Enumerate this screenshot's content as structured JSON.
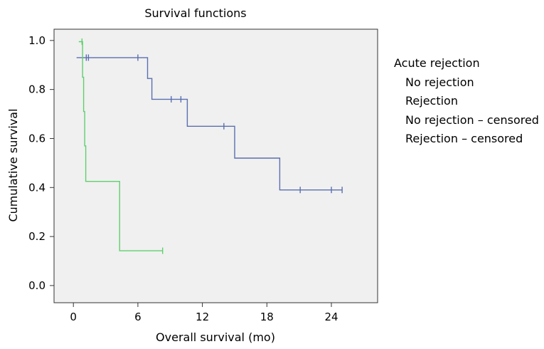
{
  "chart_data": {
    "type": "line",
    "title": "Survival functions",
    "xlabel": "Overall survival (mo)",
    "ylabel": "Cumulative survival",
    "xlim": [
      -1.8,
      28.3
    ],
    "ylim": [
      -0.07,
      1.046
    ],
    "xticks": [
      0,
      6,
      12,
      18,
      24
    ],
    "yticks": [
      0.0,
      0.2,
      0.4,
      0.6,
      0.8,
      1.0
    ],
    "ytick_labels": [
      "0.0",
      "0.2",
      "0.4",
      "0.6",
      "0.8",
      "1.0"
    ],
    "grid": false,
    "legend_placement": "right",
    "legend_title": "Acute rejection",
    "legend_entries": [
      "No rejection",
      "Rejection",
      "No rejection – censored",
      "Rejection – censored"
    ],
    "series": [
      {
        "name": "No rejection",
        "color": "#5a6fb0",
        "step_x": [
          0.3,
          6.9,
          6.9,
          7.3,
          7.3,
          10.6,
          10.6,
          15.0,
          15.0,
          19.2,
          19.2,
          25.0
        ],
        "step_y": [
          0.93,
          0.93,
          0.845,
          0.845,
          0.76,
          0.76,
          0.65,
          0.65,
          0.52,
          0.52,
          0.39,
          0.39
        ],
        "censored_x": [
          1.2,
          1.4,
          6.0,
          9.1,
          10.0,
          14.0,
          21.1,
          24.0,
          25.0
        ],
        "censored_y": [
          0.93,
          0.93,
          0.93,
          0.76,
          0.76,
          0.65,
          0.39,
          0.39,
          0.39
        ]
      },
      {
        "name": "Rejection",
        "color": "#5fcf6e",
        "step_x": [
          0.5,
          0.85,
          0.85,
          0.95,
          0.95,
          1.05,
          1.05,
          1.15,
          1.15,
          4.3,
          4.3,
          8.3
        ],
        "step_y": [
          0.995,
          0.995,
          0.85,
          0.85,
          0.71,
          0.71,
          0.57,
          0.57,
          0.425,
          0.425,
          0.142,
          0.142
        ],
        "censored_x": [
          0.8,
          8.3
        ],
        "censored_y": [
          0.995,
          0.142
        ]
      }
    ]
  }
}
